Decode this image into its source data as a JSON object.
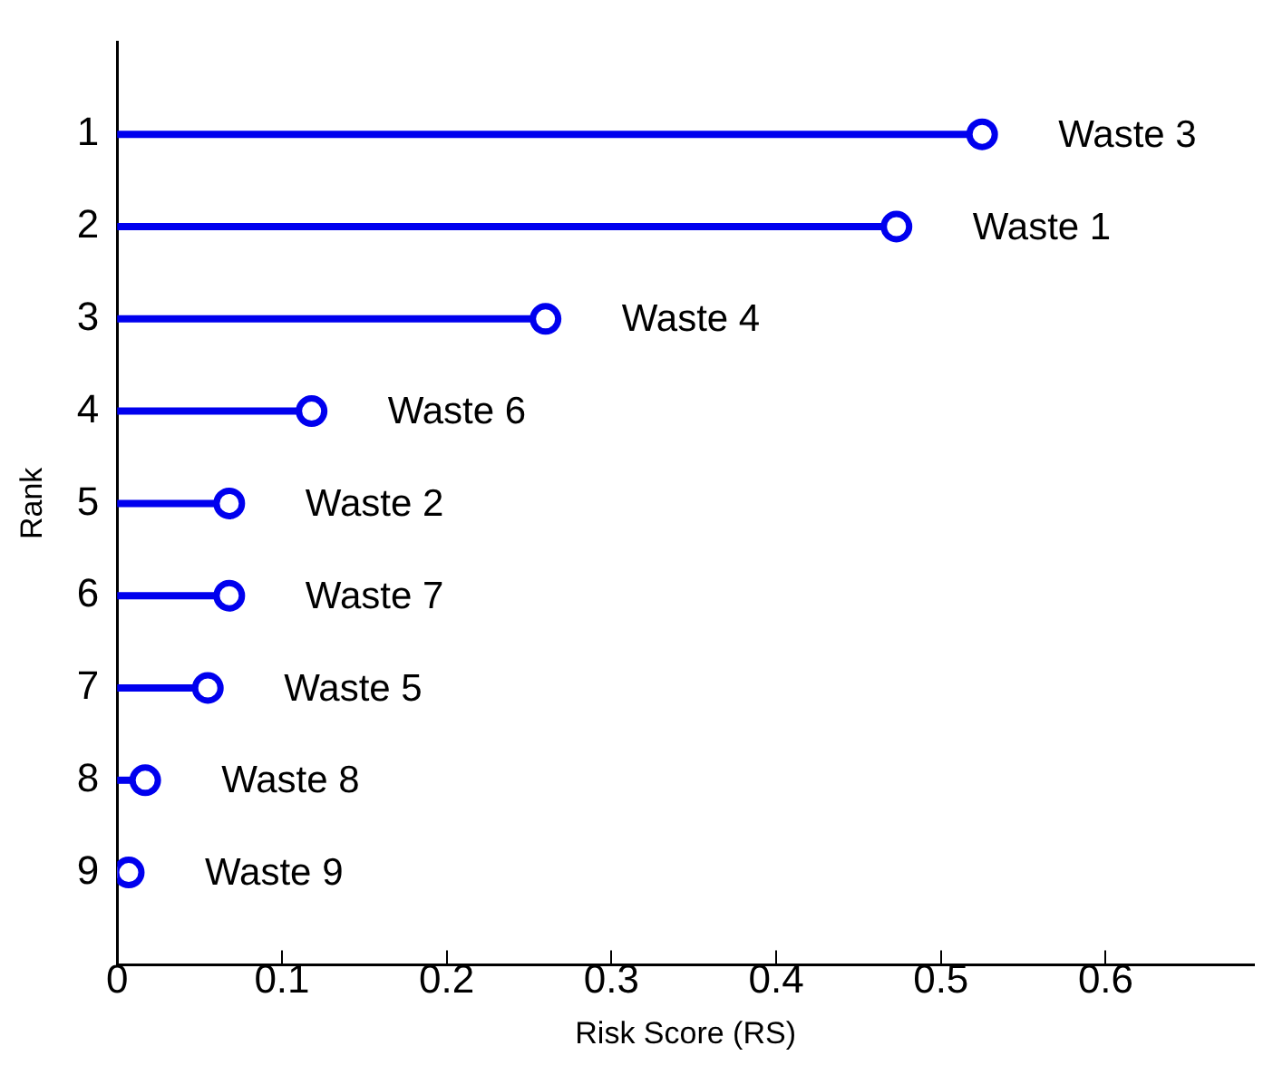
{
  "chart_data": {
    "type": "lollipop",
    "orientation": "horizontal",
    "xlabel": "Risk Score (RS)",
    "ylabel": "Rank",
    "categories": [
      "1",
      "2",
      "3",
      "4",
      "5",
      "6",
      "7",
      "8",
      "9"
    ],
    "series": [
      {
        "color": "#0000ee",
        "values": [
          0.525,
          0.473,
          0.26,
          0.118,
          0.068,
          0.068,
          0.055,
          0.017,
          0.007
        ]
      }
    ],
    "xlim": [
      0,
      0.69
    ],
    "xticks": [
      0,
      0.1,
      0.2,
      0.3,
      0.4,
      0.5,
      0.6
    ],
    "marker": "circle",
    "grid": false,
    "legend": false,
    "annotations": [
      {
        "text": "Waste 3",
        "x": 0.525,
        "y": "1"
      },
      {
        "text": "Waste 1",
        "x": 0.473,
        "y": "2"
      },
      {
        "text": "Waste 4",
        "x": 0.26,
        "y": "3"
      },
      {
        "text": "Waste 6",
        "x": 0.118,
        "y": "4"
      },
      {
        "text": "Waste 2",
        "x": 0.068,
        "y": "5"
      },
      {
        "text": "Waste 7",
        "x": 0.068,
        "y": "6"
      },
      {
        "text": "Waste 5",
        "x": 0.055,
        "y": "7"
      },
      {
        "text": "Waste 8",
        "x": 0.017,
        "y": "8"
      },
      {
        "text": "Waste 9",
        "x": 0.007,
        "y": "9"
      }
    ]
  }
}
